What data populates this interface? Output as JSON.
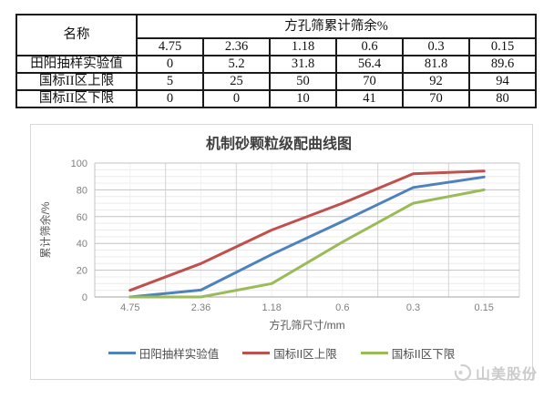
{
  "table": {
    "name_header": "名称",
    "group_header": "方孔筛累计筛余%",
    "size_headers": [
      "4.75",
      "2.36",
      "1.18",
      "0.6",
      "0.3",
      "0.15"
    ],
    "rows": [
      {
        "label": "田阳抽样实验值",
        "values": [
          "0",
          "5.2",
          "31.8",
          "56.4",
          "81.8",
          "89.6"
        ]
      },
      {
        "label": "国标II区上限",
        "values": [
          "5",
          "25",
          "50",
          "70",
          "92",
          "94"
        ]
      },
      {
        "label": "国标II区下限",
        "values": [
          "0",
          "0",
          "10",
          "41",
          "70",
          "80"
        ]
      }
    ]
  },
  "chart_data": {
    "type": "line",
    "title": "机制砂颗粒级配曲线图",
    "categories": [
      "4.75",
      "2.36",
      "1.18",
      "0.6",
      "0.3",
      "0.15"
    ],
    "series": [
      {
        "name": "田阳抽样实验值",
        "color": "#4F81BD",
        "values": [
          0,
          5.2,
          31.8,
          56.4,
          81.8,
          89.6
        ]
      },
      {
        "name": "国标II区上限",
        "color": "#C0504D",
        "values": [
          5,
          25,
          50,
          70,
          92,
          94
        ]
      },
      {
        "name": "国标II区下限",
        "color": "#9BBB59",
        "values": [
          0,
          0,
          10,
          41,
          70,
          80
        ]
      }
    ],
    "xlabel": "方孔筛尺寸/mm",
    "ylabel": "累计筛余/%",
    "ylim": [
      0,
      100
    ],
    "y_major_ticks": [
      0,
      20,
      40,
      60,
      80,
      100
    ],
    "y_minor_step": 5,
    "grid": true,
    "legend_position": "bottom",
    "colors": {
      "title_text": "#3f3f3f",
      "tick_text": "#7f7f7f",
      "axis_title_text": "#595959",
      "grid_major": "#c3c3c3",
      "grid_minor": "#ececec",
      "vgrid_major": "#d4d4d4",
      "vgrid_minor": "#f0f0f0",
      "axis_line": "#a6a6a6"
    }
  },
  "watermark": {
    "text": "山美股份"
  }
}
